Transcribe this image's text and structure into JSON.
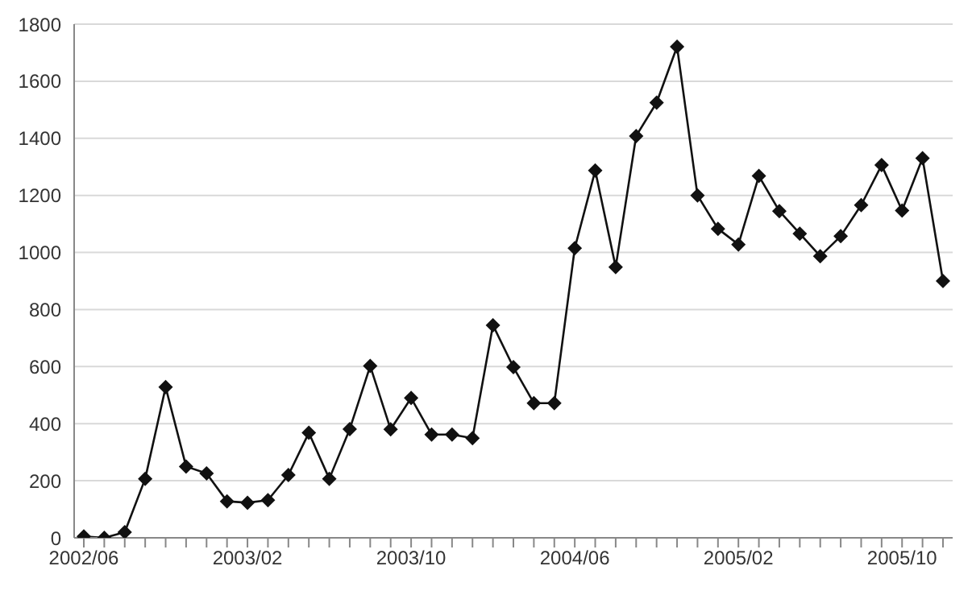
{
  "chart_data": {
    "type": "line",
    "categories": [
      "2002/06",
      null,
      null,
      null,
      null,
      null,
      null,
      null,
      "2003/02",
      null,
      null,
      null,
      null,
      null,
      null,
      null,
      "2003/10",
      null,
      null,
      null,
      null,
      null,
      null,
      null,
      "2004/06",
      null,
      null,
      null,
      null,
      null,
      null,
      null,
      "2005/02",
      null,
      null,
      null,
      null,
      null,
      null,
      null,
      "2005/10",
      null,
      null
    ],
    "series": [
      {
        "color": "#111111",
        "values": [
          5,
          0,
          20,
          207,
          528,
          250,
          226,
          128,
          123,
          132,
          220,
          368,
          207,
          381,
          602,
          380,
          490,
          362,
          362,
          349,
          745,
          598,
          472,
          472,
          1015,
          1287,
          949,
          1408,
          1525,
          1721,
          1200,
          1083,
          1028,
          1268,
          1145,
          1066,
          987,
          1057,
          1166,
          1306,
          1147,
          1330,
          900
        ]
      }
    ],
    "ylim": [
      0,
      1800
    ],
    "yticks": [
      0,
      200,
      400,
      600,
      800,
      1000,
      1200,
      1400,
      1600,
      1800
    ],
    "grid": "y",
    "marker": "diamond",
    "line_style": "solid"
  }
}
